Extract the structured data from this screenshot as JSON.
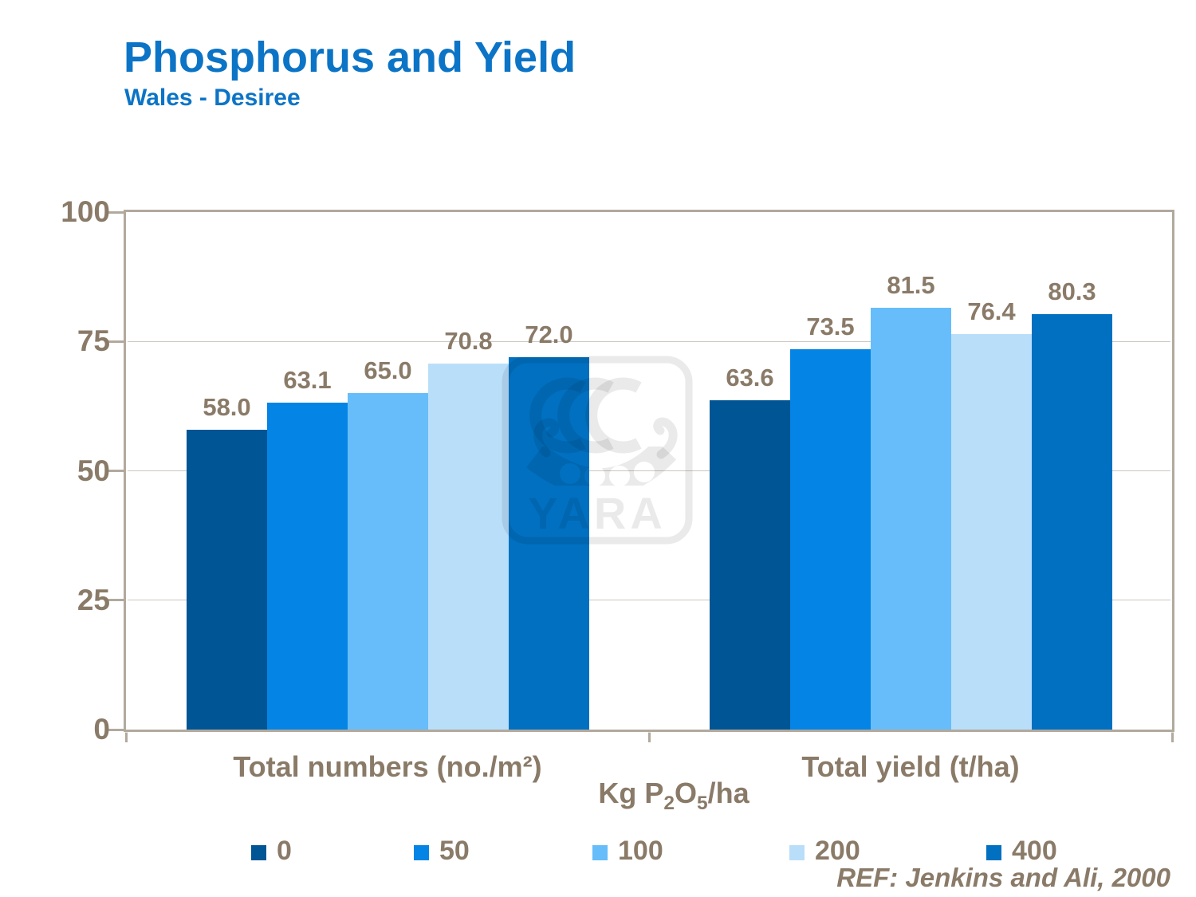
{
  "title": "Phosphorus and Yield",
  "subtitle": "Wales - Desiree",
  "reference": "REF: Jenkins and Ali, 2000",
  "watermark_text": "YARA",
  "colors": {
    "title_blue": "#0c74c6",
    "label_brown": "#8a7a68",
    "gridline": "#ccc7c0",
    "frame": "#b2a99d"
  },
  "chart_data": {
    "type": "bar",
    "categories": [
      "Total numbers (no./m²)",
      "Total yield (t/ha)"
    ],
    "series": [
      {
        "name": "0",
        "color": "#005594",
        "values": [
          58.0,
          63.6
        ]
      },
      {
        "name": "50",
        "color": "#0484e4",
        "values": [
          63.1,
          73.5
        ]
      },
      {
        "name": "100",
        "color": "#66bdfa",
        "values": [
          65.0,
          81.5
        ]
      },
      {
        "name": "200",
        "color": "#b9defa",
        "values": [
          70.8,
          76.4
        ]
      },
      {
        "name": "400",
        "color": "#0170c0",
        "values": [
          72.0,
          80.3
        ]
      }
    ],
    "value_label_format": "one_decimal",
    "ylim": [
      0,
      100
    ],
    "yticks": [
      0,
      25,
      50,
      75,
      100
    ],
    "xlabel": "",
    "ylabel": "",
    "legend_title_parts": [
      {
        "t": "Kg P"
      },
      {
        "t": "2",
        "sub": true
      },
      {
        "t": "O"
      },
      {
        "t": "5",
        "sub": true
      },
      {
        "t": "/ha"
      }
    ],
    "legend_position": "bottom",
    "grid": true
  }
}
